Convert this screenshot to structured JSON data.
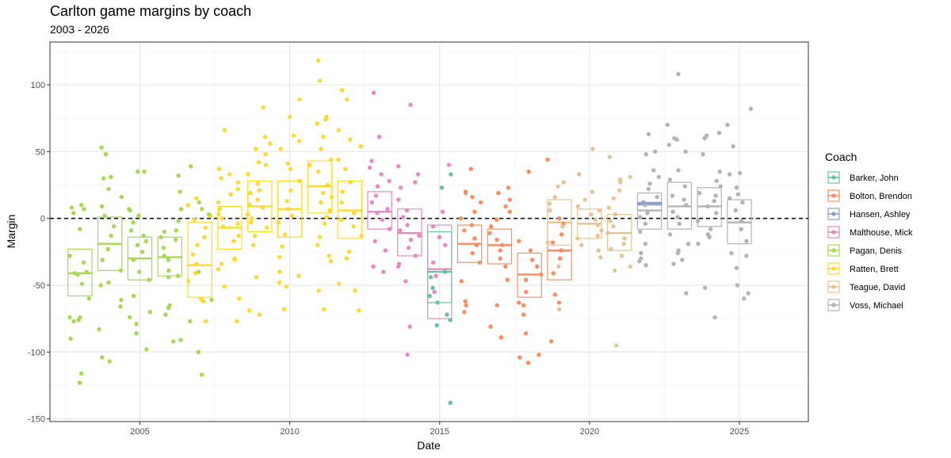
{
  "chart_data": {
    "type": "scatter",
    "title": "Carlton game margins by coach",
    "subtitle": "2003 - 2026",
    "xlabel": "Date",
    "ylabel": "Margin",
    "xlim": [
      2002.0,
      2027.3
    ],
    "ylim": [
      -152,
      132
    ],
    "x_ticks": [
      2005,
      2010,
      2015,
      2020,
      2025
    ],
    "y_ticks": [
      -150,
      -100,
      -50,
      0,
      50,
      100
    ],
    "reference_line": 0,
    "grid": true,
    "legend_title": "Coach",
    "legend_position": "right",
    "coaches": [
      {
        "name": "Barker, John",
        "color": "#66C2A5"
      },
      {
        "name": "Bolton, Brendon",
        "color": "#FC8D62"
      },
      {
        "name": "Hansen, Ashley",
        "color": "#8DA0CB"
      },
      {
        "name": "Malthouse, Mick",
        "color": "#E78AC3"
      },
      {
        "name": "Pagan, Denis",
        "color": "#A6D854"
      },
      {
        "name": "Ratten, Brett",
        "color": "#FFD92F"
      },
      {
        "name": "Teague, David",
        "color": "#E5C494"
      },
      {
        "name": "Voss, Michael",
        "color": "#B3B3B3"
      }
    ],
    "boxes": [
      {
        "coach": "Pagan, Denis",
        "year": 2003,
        "q1": -58,
        "median": -41,
        "q3": -23
      },
      {
        "coach": "Pagan, Denis",
        "year": 2004,
        "q1": -39,
        "median": -19,
        "q3": 1
      },
      {
        "coach": "Pagan, Denis",
        "year": 2005,
        "q1": -46,
        "median": -30,
        "q3": -14
      },
      {
        "coach": "Pagan, Denis",
        "year": 2006,
        "q1": -43,
        "median": -29,
        "q3": -14
      },
      {
        "coach": "Ratten, Brett",
        "year": 2007,
        "q1": -59,
        "median": -35,
        "q3": -3
      },
      {
        "coach": "Ratten, Brett",
        "year": 2008,
        "q1": -23,
        "median": -7,
        "q3": 9
      },
      {
        "coach": "Ratten, Brett",
        "year": 2009,
        "q1": -10,
        "median": 9,
        "q3": 28
      },
      {
        "coach": "Ratten, Brett",
        "year": 2010,
        "q1": -14,
        "median": 7,
        "q3": 28
      },
      {
        "coach": "Ratten, Brett",
        "year": 2011,
        "q1": 4,
        "median": 24,
        "q3": 43
      },
      {
        "coach": "Ratten, Brett",
        "year": 2012,
        "q1": -15,
        "median": 6,
        "q3": 28
      },
      {
        "coach": "Malthouse, Mick",
        "year": 2013,
        "q1": -8,
        "median": 5,
        "q3": 20
      },
      {
        "coach": "Malthouse, Mick",
        "year": 2014,
        "q1": -28,
        "median": -11,
        "q3": 7
      },
      {
        "coach": "Malthouse, Mick",
        "year": 2015,
        "q1": -75,
        "median": -38,
        "q3": -5
      },
      {
        "coach": "Barker, John",
        "year": 2015,
        "q1": -63,
        "median": -40,
        "q3": -10
      },
      {
        "coach": "Bolton, Brendon",
        "year": 2016,
        "q1": -33,
        "median": -19,
        "q3": -5
      },
      {
        "coach": "Bolton, Brendon",
        "year": 2017,
        "q1": -34,
        "median": -20,
        "q3": -8
      },
      {
        "coach": "Bolton, Brendon",
        "year": 2018,
        "q1": -59,
        "median": -42,
        "q3": -26
      },
      {
        "coach": "Bolton, Brendon",
        "year": 2019,
        "q1": -46,
        "median": -24,
        "q3": -3
      },
      {
        "coach": "Teague, David",
        "year": 2019,
        "q1": -20,
        "median": -3,
        "q3": 14
      },
      {
        "coach": "Teague, David",
        "year": 2020,
        "q1": -15,
        "median": -4,
        "q3": 7
      },
      {
        "coach": "Teague, David",
        "year": 2021,
        "q1": -24,
        "median": -11,
        "q3": 3
      },
      {
        "coach": "Voss, Michael",
        "year": 2022,
        "q1": -8,
        "median": 6,
        "q3": 19
      },
      {
        "coach": "Hansen, Ashley",
        "year": 2022,
        "q1": 10,
        "median": 11,
        "q3": 12
      },
      {
        "coach": "Voss, Michael",
        "year": 2023,
        "q1": -8,
        "median": 9,
        "q3": 27
      },
      {
        "coach": "Voss, Michael",
        "year": 2024,
        "q1": -6,
        "median": 9,
        "q3": 23
      },
      {
        "coach": "Voss, Michael",
        "year": 2025,
        "q1": -19,
        "median": -3,
        "q3": 14
      }
    ],
    "points": [
      {
        "coach": "Pagan, Denis",
        "year": 2003,
        "values": [
          -123,
          -116,
          -90,
          -77,
          -76,
          -74,
          -74,
          -60,
          -49,
          -42,
          -41,
          -40,
          -33,
          -28,
          -8,
          4,
          7,
          8,
          10
        ]
      },
      {
        "coach": "Pagan, Denis",
        "year": 2004,
        "values": [
          -107,
          -104,
          -83,
          -66,
          -61,
          -50,
          -48,
          -39,
          -31,
          -23,
          -13,
          -6,
          2,
          9,
          16,
          22,
          30,
          31,
          48,
          53
        ]
      },
      {
        "coach": "Pagan, Denis",
        "year": 2005,
        "values": [
          -98,
          -86,
          -79,
          -74,
          -70,
          -58,
          -46,
          -40,
          -31,
          -25,
          -20,
          -17,
          -13,
          -9,
          -3,
          2,
          6,
          7,
          35,
          35
        ]
      },
      {
        "coach": "Pagan, Denis",
        "year": 2006,
        "values": [
          -92,
          -91,
          -72,
          -67,
          -65,
          -44,
          -43,
          -39,
          -31,
          -28,
          -22,
          -16,
          -14,
          -10,
          -9,
          -2,
          7,
          20,
          32
        ]
      },
      {
        "coach": "Ratten, Brett",
        "year": 2007,
        "values": [
          -77,
          -62,
          -60,
          -47,
          -41,
          -34,
          -27,
          -20,
          -14,
          -7,
          -1,
          2,
          10,
          15
        ]
      },
      {
        "coach": "Pagan, Denis",
        "year": 2007,
        "values": [
          -117,
          -100,
          -77,
          -61,
          -40,
          3,
          7,
          12,
          39
        ]
      },
      {
        "coach": "Ratten, Brett",
        "year": 2008,
        "values": [
          -77,
          -60,
          -51,
          -38,
          -34,
          -31,
          -30,
          -17,
          -13,
          -6,
          -4,
          0,
          3,
          7,
          12,
          18,
          22,
          27,
          30,
          33,
          37,
          66
        ]
      },
      {
        "coach": "Ratten, Brett",
        "year": 2009,
        "values": [
          -72,
          -69,
          -44,
          -20,
          -13,
          -7,
          -3,
          0,
          3,
          8,
          10,
          14,
          19,
          21,
          26,
          33,
          40,
          42,
          48,
          52,
          56,
          61,
          83
        ]
      },
      {
        "coach": "Ratten, Brett",
        "year": 2010,
        "values": [
          -68,
          -51,
          -48,
          -43,
          -40,
          -29,
          -21,
          -12,
          -3,
          2,
          7,
          13,
          21,
          28,
          37,
          41,
          52,
          58,
          62,
          76,
          89
        ]
      },
      {
        "coach": "Ratten, Brett",
        "year": 2011,
        "values": [
          -68,
          -54,
          -32,
          -28,
          -20,
          -14,
          -4,
          1,
          6,
          12,
          16,
          19,
          25,
          35,
          40,
          44,
          52,
          61,
          71,
          74,
          76,
          103,
          118
        ]
      },
      {
        "coach": "Ratten, Brett",
        "year": 2012,
        "values": [
          -69,
          -54,
          -49,
          -30,
          -25,
          -13,
          -6,
          -1,
          4,
          12,
          20,
          27,
          37,
          44,
          54,
          59,
          66,
          89,
          96
        ]
      },
      {
        "coach": "Malthouse, Mick",
        "year": 2013,
        "values": [
          -40,
          -36,
          -24,
          -17,
          -8,
          -1,
          4,
          7,
          12,
          17,
          24,
          28,
          33,
          38,
          43,
          61,
          94
        ]
      },
      {
        "coach": "Malthouse, Mick",
        "year": 2014,
        "values": [
          -102,
          -81,
          -47,
          -36,
          -34,
          -28,
          -22,
          -16,
          -13,
          -9,
          -5,
          1,
          6,
          14,
          23,
          27,
          33,
          39,
          85
        ]
      },
      {
        "coach": "Malthouse, Mick",
        "year": 2015,
        "values": [
          -55,
          -43,
          -33,
          -20,
          -14,
          -6,
          5,
          40
        ]
      },
      {
        "coach": "Barker, John",
        "year": 2015,
        "values": [
          -138,
          -80,
          -76,
          -72,
          -63,
          -58,
          -52,
          -44,
          -40,
          23,
          33
        ]
      },
      {
        "coach": "Bolton, Brendon",
        "year": 2016,
        "values": [
          -70,
          -65,
          -62,
          -47,
          -33,
          -26,
          -20,
          -15,
          -9,
          -5,
          0,
          5,
          12,
          16,
          19,
          20,
          37
        ]
      },
      {
        "coach": "Bolton, Brendon",
        "year": 2017,
        "values": [
          -89,
          -81,
          -65,
          -46,
          -36,
          -30,
          -24,
          -20,
          -16,
          -11,
          -6,
          -1,
          5,
          9,
          14,
          19,
          23
        ]
      },
      {
        "coach": "Bolton, Brendon",
        "year": 2018,
        "values": [
          -108,
          -104,
          -102,
          -86,
          -72,
          -65,
          -63,
          -55,
          -46,
          -42,
          -36,
          -31,
          -24,
          -17,
          35
        ]
      },
      {
        "coach": "Bolton, Brendon",
        "year": 2019,
        "values": [
          -92,
          -63,
          -57,
          -41,
          -30,
          -24,
          -18,
          -12,
          -4,
          0,
          6,
          44
        ]
      },
      {
        "coach": "Teague, David",
        "year": 2019,
        "values": [
          -68,
          -36,
          -18,
          -6,
          6,
          11,
          16,
          24,
          27
        ]
      },
      {
        "coach": "Teague, David",
        "year": 2020,
        "values": [
          -29,
          -24,
          -20,
          -15,
          -13,
          -9,
          -5,
          -1,
          3,
          6,
          9,
          14,
          20,
          33,
          52
        ]
      },
      {
        "coach": "Teague, David",
        "year": 2021,
        "values": [
          -95,
          -39,
          -36,
          -28,
          -23,
          -19,
          -15,
          -11,
          -6,
          -2,
          3,
          8,
          15,
          21,
          27,
          29,
          31,
          46
        ]
      },
      {
        "coach": "Voss, Michael",
        "year": 2022,
        "values": [
          -35,
          -32,
          -30,
          -26,
          -19,
          -10,
          -4,
          1,
          4,
          10,
          16,
          22,
          26,
          31,
          36,
          48,
          50,
          63
        ]
      },
      {
        "coach": "Hansen, Ashley",
        "year": 2022,
        "values": [
          12
        ]
      },
      {
        "coach": "Voss, Michael",
        "year": 2023,
        "values": [
          -56,
          -34,
          -31,
          -26,
          -24,
          -19,
          -12,
          -4,
          1,
          5,
          10,
          14,
          17,
          24,
          29,
          36,
          50,
          55,
          59,
          60,
          70,
          108
        ]
      },
      {
        "coach": "Voss, Michael",
        "year": 2024,
        "values": [
          -74,
          -52,
          -19,
          -14,
          -12,
          -8,
          -2,
          4,
          9,
          13,
          17,
          19,
          24,
          28,
          35,
          48,
          60,
          62,
          64
        ]
      },
      {
        "coach": "Voss, Michael",
        "year": 2025,
        "values": [
          -60,
          -56,
          -50,
          -37,
          -28,
          -26,
          -17,
          -8,
          -2,
          6,
          12,
          15,
          18,
          23,
          33,
          34,
          54,
          70,
          82
        ]
      }
    ]
  }
}
